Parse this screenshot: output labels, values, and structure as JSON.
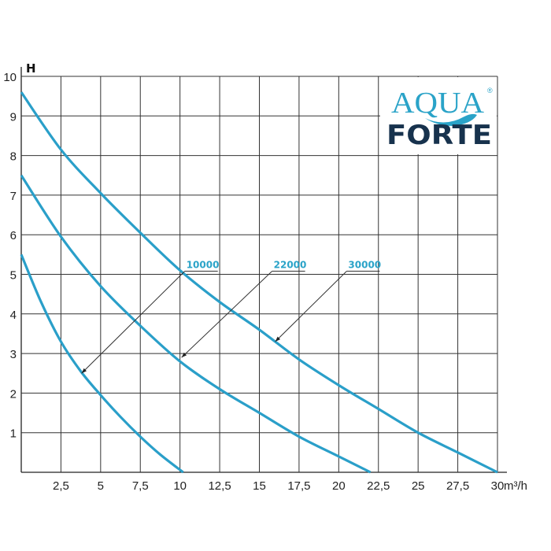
{
  "chart_data": {
    "type": "line",
    "title": "",
    "xlabel": "m³/h",
    "ylabel": "H",
    "xlim": [
      0,
      30
    ],
    "ylim": [
      0,
      10
    ],
    "grid": true,
    "x_ticks": [
      2.5,
      5,
      7.5,
      10,
      12.5,
      15,
      17.5,
      20,
      22.5,
      25,
      27.5,
      30
    ],
    "x_tick_labels": [
      "2,5",
      "5",
      "7,5",
      "10",
      "12,5",
      "15",
      "17,5",
      "20",
      "22,5",
      "25",
      "27,5",
      "30"
    ],
    "y_ticks": [
      1,
      2,
      3,
      4,
      5,
      6,
      7,
      8,
      9,
      10
    ],
    "y_tick_labels": [
      "1",
      "2",
      "3",
      "4",
      "5",
      "6",
      "7",
      "8",
      "9",
      "10"
    ],
    "line_color": "#2a9fc9",
    "series": [
      {
        "name": "10000",
        "x": [
          0,
          1.25,
          2.5,
          3.75,
          5,
          6.25,
          7.5,
          8.75,
          10.2
        ],
        "y": [
          5.5,
          4.3,
          3.3,
          2.55,
          1.95,
          1.4,
          0.9,
          0.45,
          0
        ]
      },
      {
        "name": "22000",
        "x": [
          0,
          2.5,
          5,
          7.5,
          10,
          12.5,
          15,
          17.5,
          20,
          22
        ],
        "y": [
          7.5,
          5.95,
          4.7,
          3.7,
          2.8,
          2.1,
          1.5,
          0.9,
          0.4,
          0
        ]
      },
      {
        "name": "30000",
        "x": [
          0,
          2.5,
          5,
          7.5,
          10,
          12.5,
          15,
          17.5,
          20,
          22.5,
          25,
          27.5,
          30
        ],
        "y": [
          9.6,
          8.15,
          7.05,
          6.05,
          5.1,
          4.3,
          3.6,
          2.85,
          2.2,
          1.6,
          1.0,
          0.5,
          0
        ]
      }
    ],
    "annotations": [
      {
        "text": "10000",
        "at": [
          10.3,
          5.0
        ],
        "points_to": [
          3.8,
          2.5
        ]
      },
      {
        "text": "22000",
        "at": [
          15.8,
          5.0
        ],
        "points_to": [
          10.1,
          2.9
        ]
      },
      {
        "text": "30000",
        "at": [
          20.5,
          5.0
        ],
        "points_to": [
          16.0,
          3.3
        ]
      }
    ]
  },
  "logo": {
    "text_top": "AQUA",
    "text_bottom": "FORTE",
    "registered": "®",
    "color_top": "#2aa3c8",
    "color_bottom": "#17324d"
  }
}
